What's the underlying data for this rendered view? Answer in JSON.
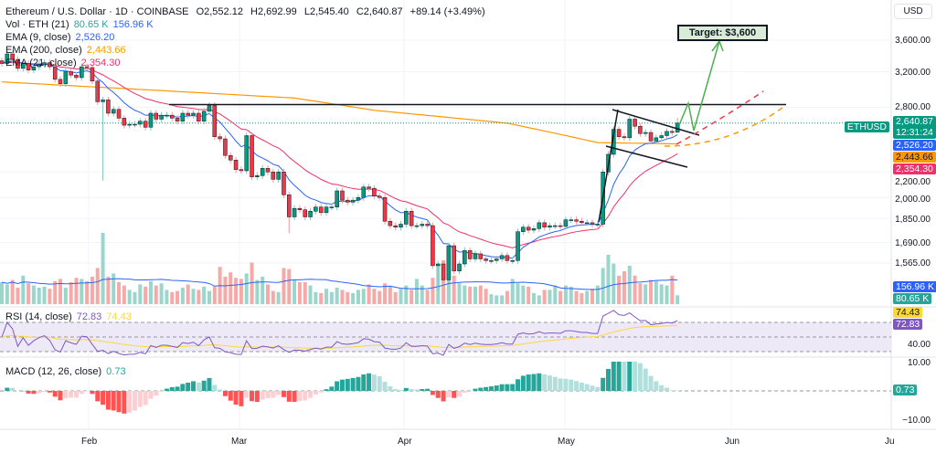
{
  "header": {
    "symbol": "Ethereum / U.S. Dollar · 1D · COINBASE",
    "open": "O2,552.12",
    "high": "H2,692.99",
    "low": "L2,545.40",
    "close": "C2,640.87",
    "change": "+89.14 (+3.49%)"
  },
  "legends": {
    "vol": {
      "label": "Vol · ETH (21)",
      "v1": "80.65 K",
      "v2": "156.96 K"
    },
    "ema9": {
      "label": "EMA (9, close)",
      "value": "2,526.20"
    },
    "ema200": {
      "label": "EMA (200, close)",
      "value": "2,443.66"
    },
    "ema21": {
      "label": "EMA (21, close)",
      "value": "2,354.30"
    },
    "rsi": {
      "label": "RSI (14, close)",
      "v1": "72.83",
      "v2": "74.43"
    },
    "macd": {
      "label": "MACD (12, 26, close)",
      "value": "0.73"
    }
  },
  "currency": "USD",
  "price_axis": [
    "3,600.00",
    "3,200.00",
    "2,800.00",
    "2,200.00",
    "2,000.00",
    "1,850.00",
    "1,690.00",
    "1,565.00"
  ],
  "rsi_axis": [
    "40.00"
  ],
  "macd_axis": [
    "10.00",
    "−10.00"
  ],
  "time_axis": [
    "Feb",
    "Mar",
    "Apr",
    "May",
    "Jun",
    "Ju"
  ],
  "tags": {
    "symbol": "ETHUSD",
    "price": "2,640.87",
    "countdown": "12:31:24",
    "ema9": "2,526.20",
    "ema200": "2,443.66",
    "ema21": "2,354.30",
    "vol_ma": "156.96 K",
    "vol": "80.65 K",
    "rsi_ma": "74.43",
    "rsi": "72.83",
    "macd": "0.73"
  },
  "annotation": {
    "target": "Target: $3,600"
  },
  "colors": {
    "up": "#089981",
    "down": "#f23645",
    "ema9": "#2962ff",
    "ema21": "#f0306a",
    "ema200": "#ff9800",
    "rsi": "#7e57c2",
    "rsi_ma": "#fdd835",
    "arrow": "#4caf50"
  },
  "chart_data": {
    "type": "candlestick",
    "scale": "log",
    "closes": [
      3300,
      3420,
      3350,
      3240,
      3300,
      3220,
      3260,
      3290,
      3310,
      3260,
      3110,
      3060,
      3200,
      3160,
      3130,
      3260,
      3250,
      3090,
      2860,
      2880,
      2740,
      2780,
      2690,
      2620,
      2630,
      2630,
      2660,
      2600,
      2740,
      2680,
      2720,
      2720,
      2690,
      2660,
      2740,
      2720,
      2740,
      2660,
      2760,
      2820,
      2510,
      2490,
      2340,
      2300,
      2220,
      2210,
      2520,
      2160,
      2170,
      2230,
      2200,
      2140,
      2200,
      2020,
      1860,
      1920,
      1910,
      1860,
      1900,
      1930,
      1890,
      1930,
      1930,
      2050,
      1980,
      1965,
      1980,
      2000,
      2080,
      2070,
      2010,
      2000,
      1830,
      1800,
      1790,
      1810,
      1900,
      1800,
      1800,
      1810,
      1800,
      1550,
      1560,
      1470,
      1670,
      1520,
      1560,
      1640,
      1590,
      1620,
      1590,
      1580,
      1580,
      1590,
      1610,
      1580,
      1580,
      1760,
      1790,
      1770,
      1780,
      1820,
      1790,
      1800,
      1800,
      1795,
      1840,
      1840,
      1830,
      1820,
      1820,
      1810,
      1810,
      2200,
      2350,
      2580,
      2510,
      2500,
      2680,
      2610,
      2540,
      2550,
      2470,
      2500,
      2520,
      2560,
      2550,
      2640.87
    ],
    "last_ohlc": [
      2552.12,
      2692.99,
      2545.4,
      2640.87
    ],
    "low_overrides": {
      "19": 2130,
      "82": 1410,
      "54": 1750
    },
    "volume_k": [
      200,
      180,
      220,
      150,
      260,
      190,
      170,
      150,
      160,
      140,
      210,
      230,
      150,
      200,
      240,
      230,
      210,
      250,
      330,
      650,
      250,
      280,
      200,
      170,
      130,
      110,
      180,
      160,
      210,
      170,
      190,
      130,
      110,
      120,
      150,
      180,
      140,
      130,
      160,
      120,
      160,
      340,
      250,
      290,
      240,
      230,
      280,
      380,
      220,
      250,
      180,
      120,
      110,
      330,
      320,
      220,
      200,
      200,
      170,
      110,
      100,
      140,
      110,
      150,
      130,
      110,
      100,
      130,
      140,
      180,
      140,
      120,
      190,
      160,
      110,
      140,
      170,
      130,
      230,
      170,
      130,
      240,
      370,
      400,
      450,
      260,
      190,
      170,
      160,
      160,
      170,
      140,
      90,
      80,
      80,
      120,
      230,
      190,
      170,
      160,
      100,
      80,
      130,
      130,
      170,
      120,
      170,
      160,
      120,
      100,
      120,
      140,
      170,
      330,
      450,
      370,
      260,
      300,
      350,
      260,
      190,
      180,
      220,
      210,
      180,
      170,
      260,
      80.65
    ],
    "ema200_points": [
      [
        0,
        3080
      ],
      [
        55,
        2900
      ],
      [
        70,
        2770
      ],
      [
        95,
        2640
      ],
      [
        112,
        2455
      ],
      [
        127,
        2443.66
      ]
    ],
    "resistance": 2830,
    "ylim": [
      1440,
      3900
    ]
  }
}
